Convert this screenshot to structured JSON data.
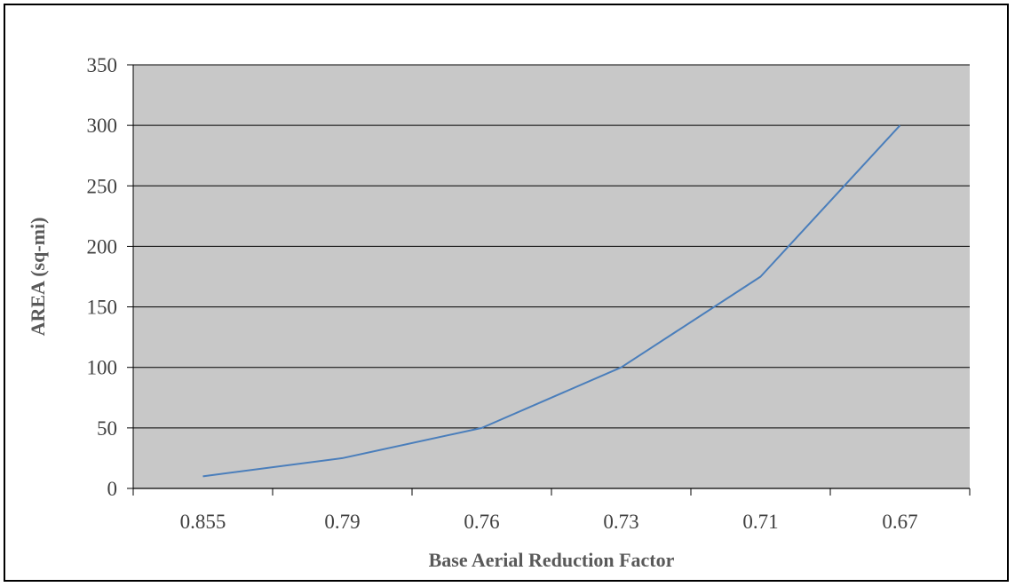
{
  "chart_data": {
    "type": "line",
    "categories": [
      "0.855",
      "0.79",
      "0.76",
      "0.73",
      "0.71",
      "0.67"
    ],
    "series": [
      {
        "values": [
          10,
          25,
          50,
          100,
          175,
          300
        ]
      }
    ],
    "title": "",
    "xlabel": "Base Aerial Reduction Factor",
    "ylabel": "AREA (sq-mi)",
    "ylim": [
      0,
      350
    ],
    "yticks": [
      "0",
      "50",
      "100",
      "150",
      "200",
      "250",
      "300",
      "350"
    ],
    "grid": true,
    "legend": "none",
    "colors": {
      "plot_background": "#c8c8c8",
      "line": "#4a7ebb",
      "gridline": "#000000"
    }
  }
}
